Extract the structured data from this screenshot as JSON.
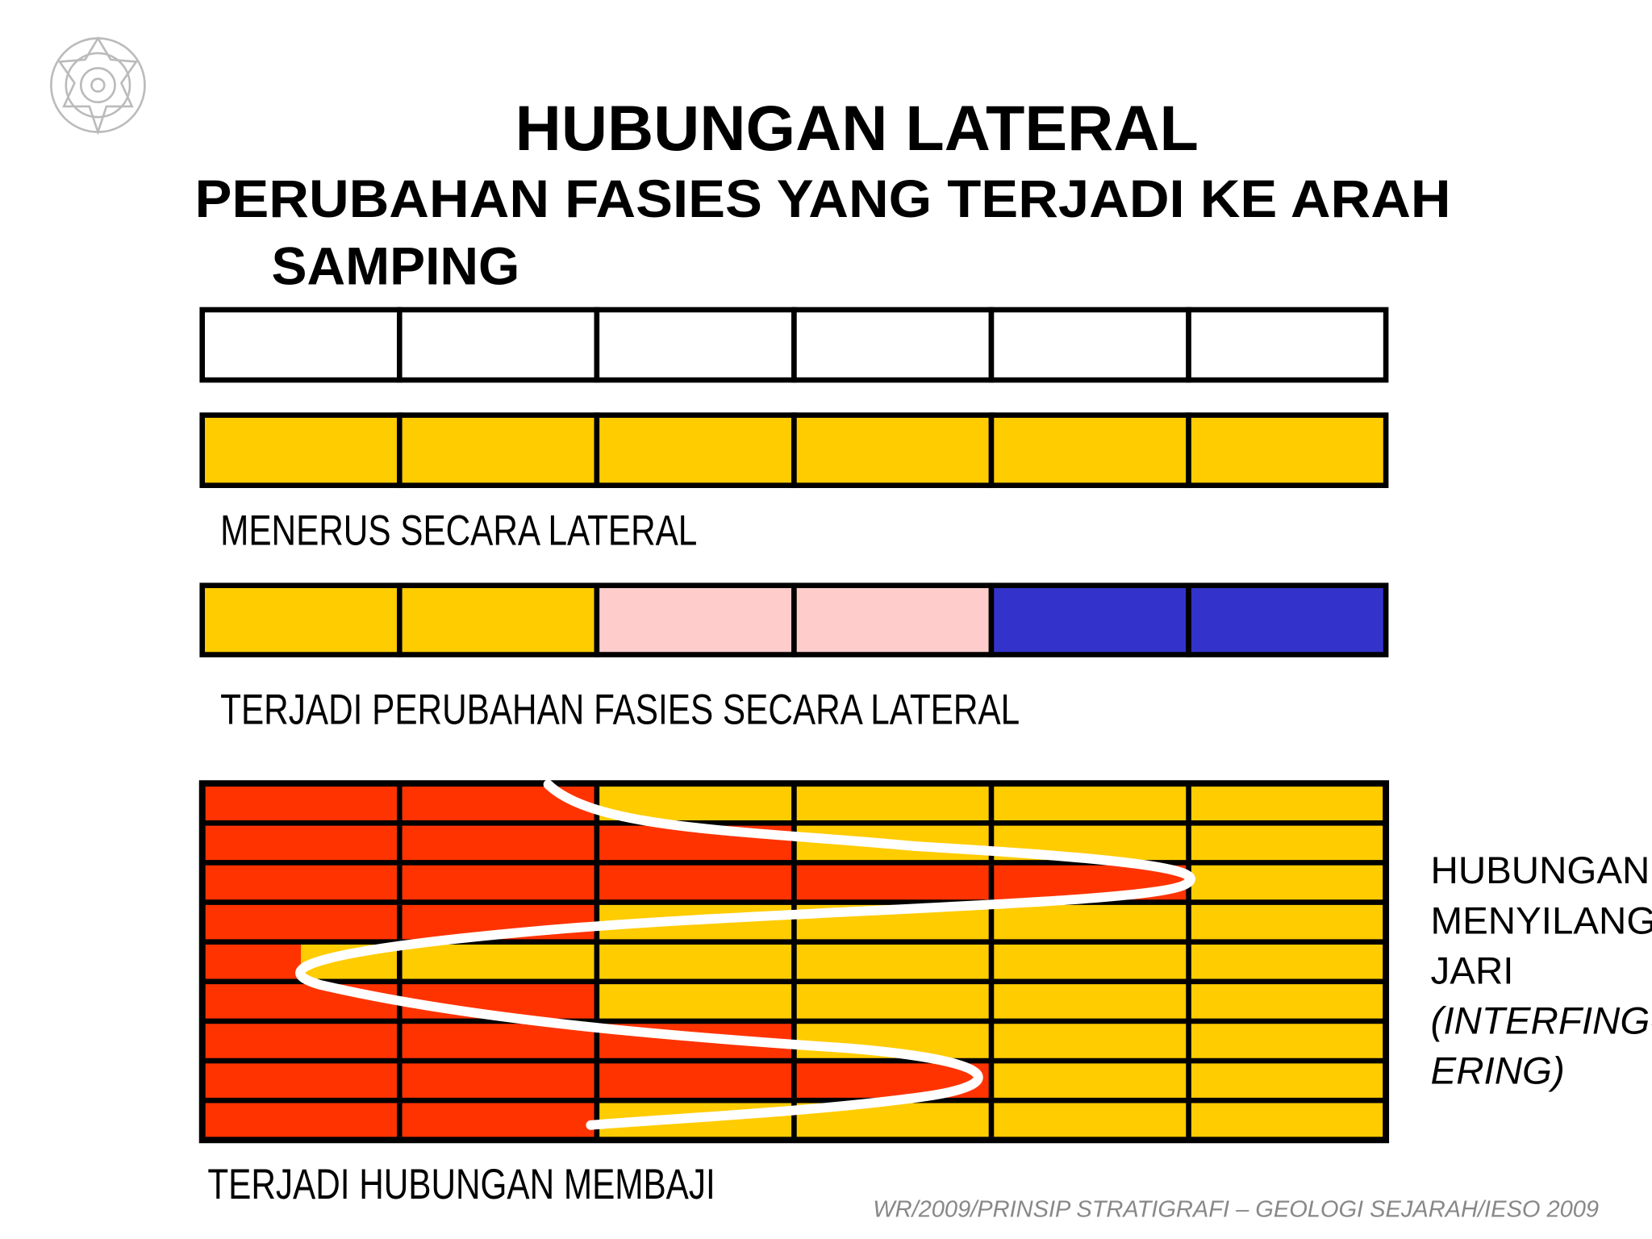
{
  "header": {
    "title": "HUBUNGAN LATERAL",
    "subtitle": [
      "PERUBAHAN FASIES YANG TERJADI KE ARAH",
      "SAMPING"
    ]
  },
  "captions": [
    "MENERUS SECARA LATERAL",
    "TERJADI PERUBAHAN FASIES SECARA LATERAL",
    "TERJADI HUBUNGAN MEMBAJI"
  ],
  "side_label": [
    "HUBUNGAN",
    "MENYILANG",
    "JARI",
    "(INTERFING-",
    "ERING)"
  ],
  "footer": "WR/2009/PRINSIP STRATIGRAFI – GEOLOGI SEJARAH/IESO 2009"
}
